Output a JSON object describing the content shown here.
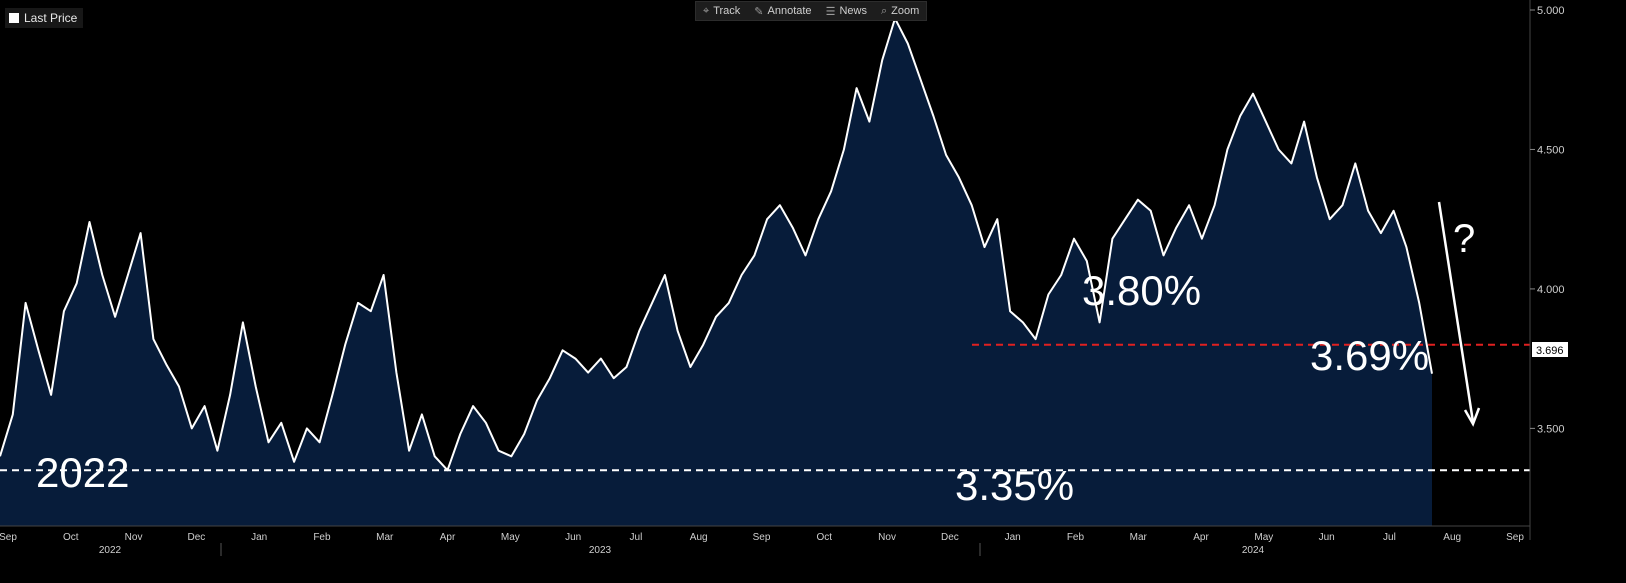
{
  "toolbar": {
    "track": "Track",
    "annotate": "Annotate",
    "news": "News",
    "zoom": "Zoom"
  },
  "legend_label": "Last Price",
  "last_value_tag": "3.696",
  "annotations": {
    "level_380": "3.80%",
    "level_369": "3.69%",
    "level_335": "3.35%",
    "year_2022": "2022",
    "question": "?"
  },
  "colors": {
    "line": "#ffffff",
    "area_fill": "#071c3a",
    "red_dash": "#e02020",
    "white_dash": "#ffffff",
    "axis_text": "#cfcfcf"
  },
  "chart_data": {
    "type": "area",
    "ylim": [
      3.15,
      5.0
    ],
    "y_ticks": [
      "5.000",
      "4.500",
      "4.000",
      "3.500"
    ],
    "y_tick_values": [
      5.0,
      4.5,
      4.0,
      3.5
    ],
    "x_labels": [
      "Sep",
      "Oct",
      "Nov",
      "Dec",
      "Jan",
      "Feb",
      "Mar",
      "Apr",
      "May",
      "Jun",
      "Jul",
      "Aug",
      "Sep",
      "Oct",
      "Nov",
      "Dec",
      "Jan",
      "Feb",
      "Mar",
      "Apr",
      "May",
      "Jun",
      "Jul",
      "Aug",
      "Sep"
    ],
    "year_labels": [
      "2022",
      "2023",
      "2024"
    ],
    "series": [
      {
        "values": [
          3.4,
          3.55,
          3.95,
          3.78,
          3.62,
          3.92,
          4.02,
          4.24,
          4.05,
          3.9,
          4.05,
          4.2,
          3.82,
          3.73,
          3.65,
          3.5,
          3.58,
          3.42,
          3.62,
          3.88,
          3.65,
          3.45,
          3.52,
          3.38,
          3.5,
          3.45,
          3.62,
          3.8,
          3.95,
          3.92,
          4.05,
          3.7,
          3.42,
          3.55,
          3.4,
          3.35,
          3.48,
          3.58,
          3.52,
          3.42,
          3.4,
          3.48,
          3.6,
          3.68,
          3.78,
          3.75,
          3.7,
          3.75,
          3.68,
          3.72,
          3.85,
          3.95,
          4.05,
          3.85,
          3.72,
          3.8,
          3.9,
          3.95,
          4.05,
          4.12,
          4.25,
          4.3,
          4.22,
          4.12,
          4.25,
          4.35,
          4.5,
          4.72,
          4.6,
          4.82,
          4.97,
          4.88,
          4.75,
          4.62,
          4.48,
          4.4,
          4.3,
          4.15,
          4.25,
          3.92,
          3.88,
          3.82,
          3.98,
          4.05,
          4.18,
          4.1,
          3.88,
          4.18,
          4.25,
          4.32,
          4.28,
          4.12,
          4.22,
          4.3,
          4.18,
          4.3,
          4.5,
          4.62,
          4.7,
          4.6,
          4.5,
          4.45,
          4.6,
          4.4,
          4.25,
          4.3,
          4.45,
          4.28,
          4.2,
          4.28,
          4.15,
          3.95,
          3.696
        ]
      }
    ],
    "reference_lines": [
      3.8,
      3.35
    ]
  }
}
